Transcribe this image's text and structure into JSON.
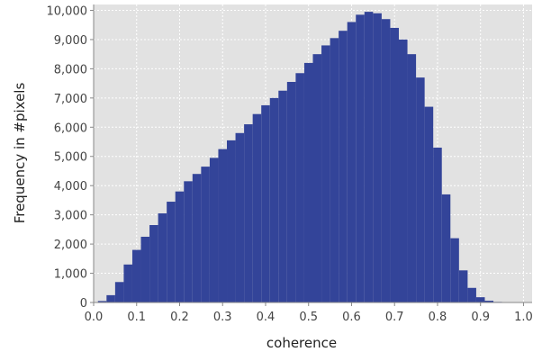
{
  "chart_data": {
    "type": "bar",
    "title": "",
    "xlabel": "coherence",
    "ylabel": "Frequency in #pixels",
    "xlim": [
      0.0,
      1.02
    ],
    "ylim": [
      0,
      10200
    ],
    "xticks": [
      0.0,
      0.1,
      0.2,
      0.3,
      0.4,
      0.5,
      0.6,
      0.7,
      0.8,
      0.9,
      1.0
    ],
    "xtick_labels": [
      "0.0",
      "0.1",
      "0.2",
      "0.3",
      "0.4",
      "0.5",
      "0.6",
      "0.7",
      "0.8",
      "0.9",
      "1.0"
    ],
    "yticks": [
      0,
      1000,
      2000,
      3000,
      4000,
      5000,
      6000,
      7000,
      8000,
      9000,
      10000
    ],
    "ytick_labels": [
      "0",
      "1,000",
      "2,000",
      "3,000",
      "4,000",
      "5,000",
      "6,000",
      "7,000",
      "8,000",
      "9,000",
      "10,000"
    ],
    "grid": true,
    "bar_color": "#334499",
    "plot_background": "#e2e2e2",
    "series": [
      {
        "x": [
          0.0,
          0.02,
          0.04,
          0.06,
          0.08,
          0.1,
          0.12,
          0.14,
          0.16,
          0.18,
          0.2,
          0.22,
          0.24,
          0.26,
          0.28,
          0.3,
          0.32,
          0.34,
          0.36,
          0.38,
          0.4,
          0.42,
          0.44,
          0.46,
          0.48,
          0.5,
          0.52,
          0.54,
          0.56,
          0.58,
          0.6,
          0.62,
          0.64,
          0.66,
          0.68,
          0.7,
          0.72,
          0.74,
          0.76,
          0.78,
          0.8,
          0.82,
          0.84,
          0.86,
          0.88,
          0.9,
          0.92,
          0.94,
          0.96,
          0.98,
          1.0
        ],
        "values": [
          0,
          50,
          250,
          700,
          1300,
          1800,
          2250,
          2650,
          3050,
          3450,
          3800,
          4150,
          4400,
          4650,
          4950,
          5250,
          5550,
          5800,
          6100,
          6450,
          6750,
          7000,
          7250,
          7550,
          7850,
          8200,
          8500,
          8800,
          9050,
          9300,
          9600,
          9850,
          9950,
          9900,
          9700,
          9400,
          9000,
          8500,
          7700,
          6700,
          5300,
          3700,
          2200,
          1100,
          500,
          180,
          60,
          20,
          5,
          0,
          0
        ]
      }
    ]
  }
}
